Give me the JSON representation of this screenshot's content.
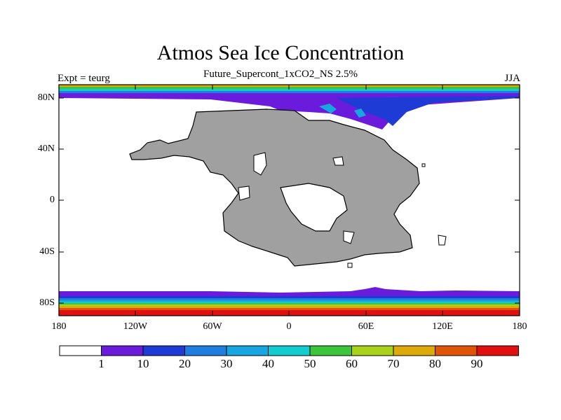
{
  "title": "Atmos Sea Ice Concentration",
  "subtitle": "Future_Supercont_1xCO2_NS 2.5%",
  "left_label": "Expt = teurg",
  "right_label": "JJA",
  "lat_labels": [
    "80N",
    "40N",
    "0",
    "40S",
    "80S"
  ],
  "lon_labels": [
    "180",
    "120W",
    "60W",
    "0",
    "60E",
    "120E",
    "180"
  ],
  "colorbar": {
    "labels": [
      "1",
      "10",
      "20",
      "30",
      "40",
      "50",
      "60",
      "70",
      "80",
      "90"
    ],
    "colors": [
      "#ffffff",
      "#6a1bdc",
      "#1f3bd6",
      "#1f7fe0",
      "#18a6e0",
      "#12ccd0",
      "#3cc43a",
      "#a8d21c",
      "#dcaa0a",
      "#e0540a",
      "#e01010"
    ]
  },
  "colors": {
    "land": "#a0a0a0",
    "ocean": "#ffffff",
    "coast": "#000000"
  }
}
